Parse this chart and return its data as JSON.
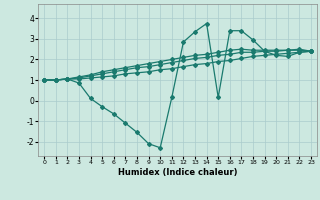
{
  "xlabel": "Humidex (Indice chaleur)",
  "bg_color": "#cce8e0",
  "grid_color": "#aacccc",
  "line_color": "#1a7a6e",
  "marker": "D",
  "markersize": 2.0,
  "linewidth": 0.9,
  "xlim": [
    -0.5,
    23.5
  ],
  "ylim": [
    -2.7,
    4.7
  ],
  "xticks": [
    0,
    1,
    2,
    3,
    4,
    5,
    6,
    7,
    8,
    9,
    10,
    11,
    12,
    13,
    14,
    15,
    16,
    17,
    18,
    19,
    20,
    21,
    22,
    23
  ],
  "yticks": [
    -2,
    -1,
    0,
    1,
    2,
    3,
    4
  ],
  "lines": [
    [
      1.0,
      1.0,
      1.05,
      0.85,
      0.1,
      -0.3,
      -0.65,
      -1.1,
      -1.55,
      -2.1,
      -2.3,
      0.15,
      2.85,
      3.35,
      3.75,
      0.15,
      3.4,
      3.4,
      2.95,
      2.4,
      2.2,
      2.15,
      2.35,
      2.4
    ],
    [
      1.0,
      1.0,
      1.05,
      1.05,
      1.1,
      1.15,
      1.2,
      1.3,
      1.35,
      1.4,
      1.5,
      1.55,
      1.65,
      1.75,
      1.8,
      1.9,
      1.95,
      2.05,
      2.15,
      2.2,
      2.25,
      2.3,
      2.35,
      2.4
    ],
    [
      1.0,
      1.0,
      1.05,
      1.1,
      1.2,
      1.3,
      1.4,
      1.5,
      1.6,
      1.65,
      1.75,
      1.85,
      1.95,
      2.05,
      2.1,
      2.2,
      2.25,
      2.35,
      2.35,
      2.4,
      2.4,
      2.45,
      2.5,
      2.4
    ],
    [
      1.0,
      1.0,
      1.05,
      1.15,
      1.25,
      1.4,
      1.5,
      1.6,
      1.7,
      1.8,
      1.9,
      2.0,
      2.1,
      2.2,
      2.25,
      2.35,
      2.45,
      2.5,
      2.45,
      2.45,
      2.45,
      2.45,
      2.45,
      2.4
    ]
  ]
}
